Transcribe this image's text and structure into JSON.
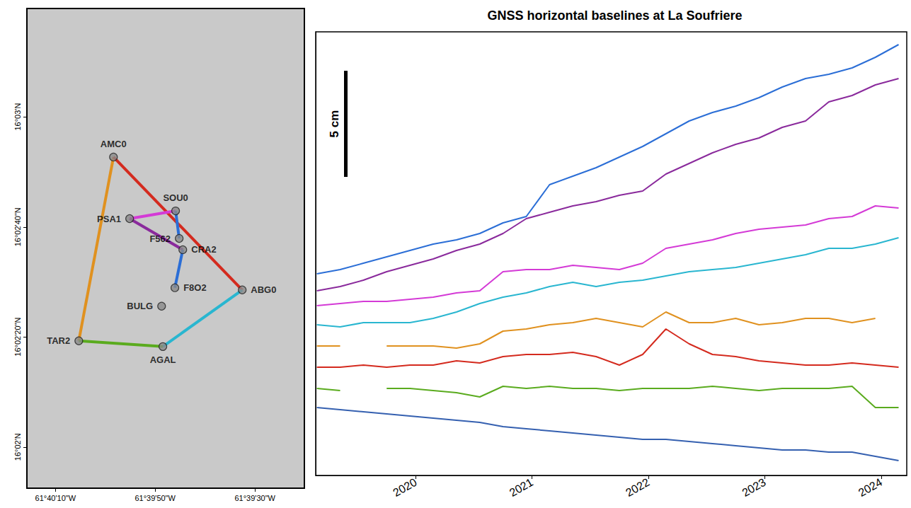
{
  "chart_data": [
    {
      "type": "map",
      "xlim": [
        -61.67103,
        -61.65558
      ],
      "ylim": [
        16.03125,
        16.05547
      ],
      "xticks": [
        {
          "value": -61.66944,
          "label": "61°40'10\"W"
        },
        {
          "value": -61.66389,
          "label": "61°39'50\"W"
        },
        {
          "value": -61.65833,
          "label": "61°39'30\"W"
        }
      ],
      "yticks": [
        {
          "value": 16.03333,
          "label": "16°02'N"
        },
        {
          "value": 16.03889,
          "label": "16°02'20\"N"
        },
        {
          "value": 16.04444,
          "label": "16°02'40\"N"
        },
        {
          "value": 16.05,
          "label": "16°03'N"
        }
      ],
      "grid": false,
      "marker": "circle",
      "stations": [
        {
          "label": "AMC0",
          "lon": -61.66621,
          "lat": 16.04797
        },
        {
          "label": "SOU0",
          "lon": -61.66275,
          "lat": 16.04525
        },
        {
          "label": "PSA1",
          "lon": -61.66531,
          "lat": 16.04486
        },
        {
          "label": "F562",
          "lon": -61.66255,
          "lat": 16.04386
        },
        {
          "label": "CRA2",
          "lon": -61.66235,
          "lat": 16.04329
        },
        {
          "label": "F8O2",
          "lon": -61.66279,
          "lat": 16.04137
        },
        {
          "label": "ABG0",
          "lon": -61.65904,
          "lat": 16.04126
        },
        {
          "label": "BULG",
          "lon": -61.66353,
          "lat": 16.04044
        },
        {
          "label": "TAR2",
          "lon": -61.66814,
          "lat": 16.03869
        },
        {
          "label": "AGAL",
          "lon": -61.66346,
          "lat": 16.0384
        }
      ],
      "baselines": [
        {
          "from": "AMC0",
          "to": "TAR2",
          "color": "#e0911f"
        },
        {
          "from": "AMC0",
          "to": "ABG0",
          "color": "#d42a1e"
        },
        {
          "from": "PSA1",
          "to": "SOU0",
          "color": "#d43ad6"
        },
        {
          "from": "PSA1",
          "to": "CRA2",
          "color": "#8a2a9c"
        },
        {
          "from": "SOU0",
          "to": "F562",
          "color": "#2b6ed6"
        },
        {
          "from": "CRA2",
          "to": "F8O2",
          "color": "#2b6ed6"
        },
        {
          "from": "ABG0",
          "to": "AGAL",
          "color": "#29b6d0"
        },
        {
          "from": "TAR2",
          "to": "AGAL",
          "color": "#5aab1e"
        }
      ]
    },
    {
      "type": "line",
      "title": "GNSS horizontal baselines at La Soufriere",
      "x": [
        2019.15,
        2019.35,
        2019.55,
        2019.75,
        2019.95,
        2020.15,
        2020.35,
        2020.55,
        2020.75,
        2020.95,
        2021.15,
        2021.35,
        2021.55,
        2021.75,
        2021.95,
        2022.15,
        2022.35,
        2022.55,
        2022.75,
        2022.95,
        2023.15,
        2023.35,
        2023.55,
        2023.75,
        2023.95,
        2024.15
      ],
      "xlim": [
        2019.14,
        2024.22
      ],
      "xticks": [
        2020,
        2021,
        2022,
        2023,
        2024
      ],
      "ylim": [
        0,
        20.9
      ],
      "tick_labels": "x",
      "grid": false,
      "marker": "none",
      "scale_bar": {
        "length": 5,
        "label": "5 cm"
      },
      "series": [
        {
          "color": "#2b6ed6",
          "values": [
            9.5,
            9.7,
            10.0,
            10.3,
            10.6,
            10.9,
            11.1,
            11.4,
            11.9,
            12.2,
            13.7,
            14.1,
            14.5,
            15.0,
            15.5,
            16.1,
            16.7,
            17.1,
            17.4,
            17.8,
            18.3,
            18.7,
            18.9,
            19.2,
            19.7,
            20.3
          ]
        },
        {
          "color": "#8a2a9c",
          "values": [
            8.7,
            8.9,
            9.2,
            9.6,
            9.9,
            10.2,
            10.6,
            10.9,
            11.4,
            12.1,
            12.4,
            12.7,
            12.9,
            13.2,
            13.4,
            14.2,
            14.7,
            15.2,
            15.6,
            15.9,
            16.4,
            16.7,
            17.6,
            17.9,
            18.4,
            18.7
          ]
        },
        {
          "color": "#d43ad6",
          "values": [
            8.0,
            8.1,
            8.2,
            8.2,
            8.3,
            8.4,
            8.6,
            8.7,
            9.6,
            9.7,
            9.7,
            9.9,
            9.8,
            9.7,
            10.0,
            10.7,
            10.9,
            11.1,
            11.4,
            11.6,
            11.7,
            11.8,
            12.1,
            12.2,
            12.7,
            12.6
          ]
        },
        {
          "color": "#29b6d0",
          "values": [
            7.1,
            7.0,
            7.2,
            7.2,
            7.2,
            7.4,
            7.7,
            8.1,
            8.4,
            8.6,
            8.9,
            9.1,
            8.9,
            9.1,
            9.2,
            9.4,
            9.6,
            9.7,
            9.8,
            10.0,
            10.2,
            10.4,
            10.7,
            10.7,
            10.9,
            11.2
          ]
        },
        {
          "color": "#e0911f",
          "values": [
            6.1,
            6.1,
            null,
            6.1,
            6.1,
            6.1,
            6.0,
            6.2,
            6.8,
            6.9,
            7.1,
            7.2,
            7.4,
            7.2,
            7.0,
            7.7,
            7.2,
            7.2,
            7.4,
            7.1,
            7.2,
            7.4,
            7.4,
            7.2,
            7.4,
            null
          ]
        },
        {
          "color": "#d42a1e",
          "values": [
            5.1,
            5.1,
            5.2,
            5.1,
            5.2,
            5.2,
            5.4,
            5.3,
            5.6,
            5.7,
            5.7,
            5.8,
            5.6,
            5.2,
            5.7,
            6.9,
            6.2,
            5.7,
            5.6,
            5.4,
            5.3,
            5.2,
            5.2,
            5.3,
            5.2,
            5.1
          ]
        },
        {
          "color": "#5aab1e",
          "values": [
            4.1,
            4.0,
            null,
            4.1,
            4.1,
            4.0,
            3.9,
            3.7,
            4.2,
            4.1,
            4.2,
            4.1,
            4.1,
            4.0,
            4.1,
            4.1,
            4.1,
            4.2,
            4.1,
            4.0,
            4.1,
            4.1,
            4.1,
            4.2,
            3.2,
            3.2
          ]
        },
        {
          "color": "#3560b0",
          "values": [
            3.2,
            3.1,
            3.0,
            2.9,
            2.8,
            2.7,
            2.6,
            2.5,
            2.3,
            2.2,
            2.1,
            2.0,
            1.9,
            1.8,
            1.7,
            1.7,
            1.6,
            1.5,
            1.4,
            1.3,
            1.2,
            1.2,
            1.1,
            1.1,
            0.9,
            0.7
          ]
        }
      ]
    }
  ]
}
